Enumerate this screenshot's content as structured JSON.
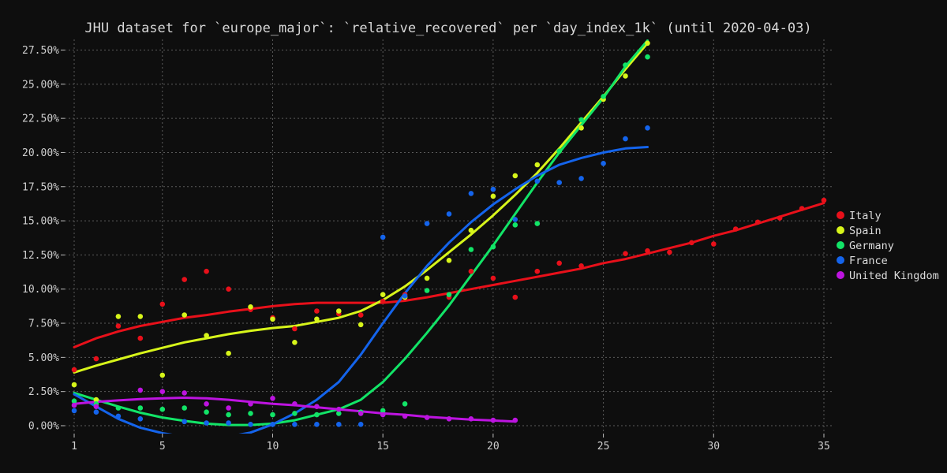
{
  "chart_data": {
    "type": "scatter",
    "title": "JHU dataset for `europe_major`: `relative_recovered` per `day_index_1k` (until 2020-04-03)",
    "xlabel": "",
    "ylabel": "",
    "xlim": [
      0.8,
      35.4
    ],
    "ylim": [
      -0.6,
      28.2
    ],
    "x_ticks": [
      1,
      5,
      10,
      15,
      20,
      25,
      30,
      35
    ],
    "x_tick_labels": [
      "1",
      "5",
      "10",
      "15",
      "20",
      "25",
      "30",
      "35"
    ],
    "y_ticks": [
      0,
      2.5,
      5,
      7.5,
      10,
      12.5,
      15,
      17.5,
      20,
      22.5,
      25,
      27.5
    ],
    "y_tick_labels": [
      "0.00%",
      "2.50%",
      "5.00%",
      "7.50%",
      "10.00%",
      "12.50%",
      "15.00%",
      "17.50%",
      "20.00%",
      "22.50%",
      "25.00%",
      "27.50%"
    ],
    "grid": true,
    "legend_position": "right",
    "background": "#0e0e0e",
    "series": [
      {
        "name": "Italy",
        "color": "#e8101a",
        "points": [
          [
            1,
            4.1
          ],
          [
            2,
            4.9
          ],
          [
            3,
            7.3
          ],
          [
            4,
            6.4
          ],
          [
            5,
            8.9
          ],
          [
            6,
            10.7
          ],
          [
            7,
            11.3
          ],
          [
            8,
            10.0
          ],
          [
            9,
            8.5
          ],
          [
            10,
            7.9
          ],
          [
            11,
            7.1
          ],
          [
            12,
            8.4
          ],
          [
            13,
            8.2
          ],
          [
            14,
            8.1
          ],
          [
            15,
            9.1
          ],
          [
            16,
            9.6
          ],
          [
            18,
            9.4
          ],
          [
            19,
            11.3
          ],
          [
            20,
            10.8
          ],
          [
            21,
            9.4
          ],
          [
            22,
            11.3
          ],
          [
            23,
            11.9
          ],
          [
            24,
            11.7
          ],
          [
            26,
            12.6
          ],
          [
            27,
            12.8
          ],
          [
            28,
            12.7
          ],
          [
            29,
            13.4
          ],
          [
            30,
            13.3
          ],
          [
            31,
            14.4
          ],
          [
            32,
            14.9
          ],
          [
            33,
            15.2
          ],
          [
            34,
            15.9
          ],
          [
            35,
            16.5
          ]
        ],
        "trend": [
          [
            1,
            5.75
          ],
          [
            2,
            6.4
          ],
          [
            3,
            6.9
          ],
          [
            4,
            7.3
          ],
          [
            5,
            7.6
          ],
          [
            6,
            7.9
          ],
          [
            7,
            8.1
          ],
          [
            8,
            8.35
          ],
          [
            9,
            8.55
          ],
          [
            10,
            8.75
          ],
          [
            11,
            8.9
          ],
          [
            12,
            9.0
          ],
          [
            13,
            9.0
          ],
          [
            14,
            9.0
          ],
          [
            15,
            9.0
          ],
          [
            16,
            9.15
          ],
          [
            17,
            9.4
          ],
          [
            18,
            9.7
          ],
          [
            19,
            10.0
          ],
          [
            20,
            10.3
          ],
          [
            21,
            10.6
          ],
          [
            22,
            10.9
          ],
          [
            23,
            11.2
          ],
          [
            24,
            11.5
          ],
          [
            25,
            11.9
          ],
          [
            26,
            12.2
          ],
          [
            27,
            12.6
          ],
          [
            28,
            13.0
          ],
          [
            29,
            13.4
          ],
          [
            30,
            13.9
          ],
          [
            31,
            14.3
          ],
          [
            32,
            14.8
          ],
          [
            33,
            15.3
          ],
          [
            34,
            15.8
          ],
          [
            35,
            16.3
          ]
        ]
      },
      {
        "name": "Spain",
        "color": "#d7f51a",
        "points": [
          [
            1,
            3.0
          ],
          [
            2,
            1.9
          ],
          [
            3,
            8.0
          ],
          [
            4,
            8.0
          ],
          [
            5,
            3.7
          ],
          [
            6,
            8.1
          ],
          [
            7,
            6.6
          ],
          [
            8,
            5.3
          ],
          [
            9,
            8.7
          ],
          [
            10,
            7.8
          ],
          [
            11,
            6.1
          ],
          [
            12,
            7.8
          ],
          [
            13,
            8.4
          ],
          [
            14,
            7.4
          ],
          [
            15,
            9.6
          ],
          [
            16,
            9.4
          ],
          [
            17,
            10.8
          ],
          [
            18,
            12.1
          ],
          [
            19,
            14.3
          ],
          [
            20,
            16.8
          ],
          [
            21,
            18.3
          ],
          [
            22,
            19.1
          ],
          [
            23,
            20.1
          ],
          [
            24,
            21.8
          ],
          [
            25,
            23.9
          ],
          [
            26,
            25.6
          ],
          [
            27,
            28.0
          ]
        ],
        "trend": [
          [
            1,
            3.9
          ],
          [
            2,
            4.4
          ],
          [
            3,
            4.85
          ],
          [
            4,
            5.3
          ],
          [
            5,
            5.7
          ],
          [
            6,
            6.1
          ],
          [
            7,
            6.4
          ],
          [
            8,
            6.7
          ],
          [
            9,
            6.95
          ],
          [
            10,
            7.15
          ],
          [
            11,
            7.3
          ],
          [
            12,
            7.6
          ],
          [
            13,
            7.9
          ],
          [
            14,
            8.4
          ],
          [
            15,
            9.2
          ],
          [
            16,
            10.2
          ],
          [
            17,
            11.4
          ],
          [
            18,
            12.7
          ],
          [
            19,
            14.0
          ],
          [
            20,
            15.4
          ],
          [
            21,
            16.9
          ],
          [
            22,
            18.5
          ],
          [
            23,
            20.3
          ],
          [
            24,
            22.2
          ],
          [
            25,
            24.1
          ],
          [
            26,
            26.1
          ],
          [
            27,
            28.0
          ]
        ]
      },
      {
        "name": "Germany",
        "color": "#12e467",
        "points": [
          [
            1,
            1.8
          ],
          [
            2,
            1.6
          ],
          [
            3,
            1.3
          ],
          [
            4,
            1.3
          ],
          [
            5,
            1.2
          ],
          [
            6,
            1.3
          ],
          [
            7,
            1.0
          ],
          [
            8,
            0.8
          ],
          [
            9,
            0.9
          ],
          [
            10,
            0.8
          ],
          [
            11,
            0.9
          ],
          [
            12,
            0.8
          ],
          [
            13,
            0.9
          ],
          [
            14,
            1.0
          ],
          [
            15,
            1.1
          ],
          [
            16,
            1.6
          ],
          [
            17,
            9.9
          ],
          [
            18,
            9.6
          ],
          [
            19,
            12.9
          ],
          [
            20,
            13.1
          ],
          [
            21,
            14.7
          ],
          [
            22,
            14.8
          ],
          [
            23,
            20.1
          ],
          [
            24,
            22.4
          ],
          [
            25,
            24.1
          ],
          [
            26,
            26.4
          ],
          [
            27,
            27.0
          ]
        ],
        "trend": [
          [
            1,
            2.4
          ],
          [
            2,
            1.9
          ],
          [
            3,
            1.4
          ],
          [
            4,
            0.95
          ],
          [
            5,
            0.6
          ],
          [
            6,
            0.35
          ],
          [
            7,
            0.15
          ],
          [
            8,
            0.05
          ],
          [
            9,
            0.05
          ],
          [
            10,
            0.15
          ],
          [
            11,
            0.4
          ],
          [
            12,
            0.8
          ],
          [
            13,
            1.2
          ],
          [
            14,
            1.9
          ],
          [
            15,
            3.2
          ],
          [
            16,
            4.9
          ],
          [
            17,
            6.8
          ],
          [
            18,
            8.8
          ],
          [
            19,
            11.0
          ],
          [
            20,
            13.2
          ],
          [
            21,
            15.5
          ],
          [
            22,
            17.8
          ],
          [
            23,
            20.0
          ],
          [
            24,
            22.0
          ],
          [
            25,
            24.0
          ],
          [
            26,
            26.3
          ],
          [
            27,
            28.2
          ]
        ]
      },
      {
        "name": "France",
        "color": "#1464ec",
        "points": [
          [
            1,
            1.1
          ],
          [
            2,
            1.0
          ],
          [
            3,
            0.7
          ],
          [
            4,
            0.5
          ],
          [
            5,
            -0.8
          ],
          [
            6,
            0.3
          ],
          [
            7,
            0.2
          ],
          [
            8,
            0.2
          ],
          [
            9,
            0.1
          ],
          [
            10,
            0.1
          ],
          [
            11,
            0.1
          ],
          [
            12,
            0.1
          ],
          [
            13,
            0.1
          ],
          [
            14,
            0.1
          ],
          [
            15,
            13.8
          ],
          [
            16,
            9.5
          ],
          [
            17,
            14.8
          ],
          [
            18,
            15.5
          ],
          [
            19,
            17.0
          ],
          [
            20,
            17.3
          ],
          [
            21,
            15.1
          ],
          [
            22,
            17.9
          ],
          [
            23,
            17.8
          ],
          [
            24,
            18.1
          ],
          [
            25,
            19.2
          ],
          [
            26,
            21.0
          ],
          [
            27,
            21.8
          ]
        ],
        "trend": [
          [
            1,
            2.3
          ],
          [
            2,
            1.4
          ],
          [
            3,
            0.5
          ],
          [
            4,
            -0.15
          ],
          [
            5,
            -0.55
          ],
          [
            6,
            -0.8
          ],
          [
            7,
            -0.95
          ],
          [
            8,
            -0.8
          ],
          [
            9,
            -0.5
          ],
          [
            10,
            0.1
          ],
          [
            11,
            0.9
          ],
          [
            12,
            1.9
          ],
          [
            13,
            3.2
          ],
          [
            14,
            5.2
          ],
          [
            15,
            7.5
          ],
          [
            16,
            9.7
          ],
          [
            17,
            11.7
          ],
          [
            18,
            13.4
          ],
          [
            19,
            14.9
          ],
          [
            20,
            16.2
          ],
          [
            21,
            17.3
          ],
          [
            22,
            18.3
          ],
          [
            23,
            19.1
          ],
          [
            24,
            19.6
          ],
          [
            25,
            20.0
          ],
          [
            26,
            20.3
          ],
          [
            27,
            20.4
          ]
        ]
      },
      {
        "name": "United Kingdom",
        "color": "#bd14e0",
        "points": [
          [
            1,
            1.5
          ],
          [
            2,
            1.4
          ],
          [
            4,
            2.6
          ],
          [
            5,
            2.5
          ],
          [
            6,
            2.4
          ],
          [
            7,
            1.6
          ],
          [
            8,
            1.3
          ],
          [
            9,
            1.6
          ],
          [
            10,
            2.0
          ],
          [
            11,
            1.6
          ],
          [
            12,
            1.4
          ],
          [
            13,
            1.2
          ],
          [
            14,
            0.9
          ],
          [
            15,
            0.8
          ],
          [
            16,
            0.7
          ],
          [
            17,
            0.6
          ],
          [
            18,
            0.5
          ],
          [
            19,
            0.5
          ],
          [
            20,
            0.4
          ],
          [
            21,
            0.4
          ]
        ],
        "trend": [
          [
            1,
            1.6
          ],
          [
            2,
            1.75
          ],
          [
            3,
            1.85
          ],
          [
            4,
            1.95
          ],
          [
            5,
            2.0
          ],
          [
            6,
            2.05
          ],
          [
            7,
            2.0
          ],
          [
            8,
            1.9
          ],
          [
            9,
            1.75
          ],
          [
            10,
            1.6
          ],
          [
            11,
            1.5
          ],
          [
            12,
            1.35
          ],
          [
            13,
            1.2
          ],
          [
            14,
            1.05
          ],
          [
            15,
            0.9
          ],
          [
            16,
            0.8
          ],
          [
            17,
            0.65
          ],
          [
            18,
            0.55
          ],
          [
            19,
            0.45
          ],
          [
            20,
            0.38
          ],
          [
            21,
            0.3
          ]
        ]
      }
    ]
  }
}
